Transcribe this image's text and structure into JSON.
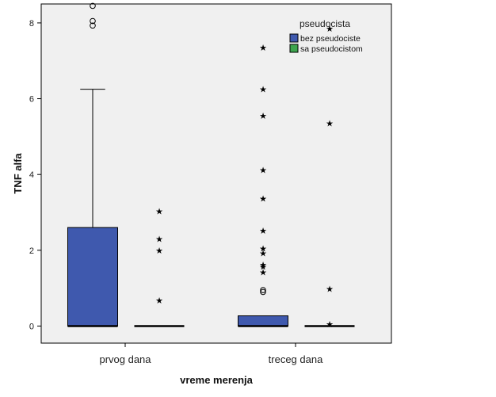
{
  "chart_data": {
    "type": "boxplot",
    "xlabel": "vreme merenja",
    "ylabel": "TNF alfa",
    "ylim": [
      -0.45,
      8.5
    ],
    "yticks": [
      0,
      2,
      4,
      6,
      8
    ],
    "categories": [
      "prvog dana",
      "treceg dana"
    ],
    "legend": {
      "title": "pseudocista",
      "placement": "top-right"
    },
    "grid": false,
    "series": [
      {
        "name": "bez pseudociste",
        "color": "#3F59AE",
        "boxes": [
          {
            "category": "prvog dana",
            "whisker_low": 0,
            "q1": 0,
            "median": 0,
            "q3": 2.6,
            "whisker_high": 6.25,
            "outliers_circle": [
              8.45,
              8.05,
              7.93
            ],
            "outliers_star": []
          },
          {
            "category": "treceg dana",
            "whisker_low": 0,
            "q1": 0,
            "median": 0,
            "q3": 0.27,
            "whisker_high": 0.27,
            "outliers_circle": [
              0.95,
              0.9
            ],
            "outliers_star": [
              7.35,
              6.25,
              5.55,
              4.12,
              3.37,
              2.52,
              2.05,
              1.92,
              1.62,
              1.57,
              1.42
            ]
          }
        ]
      },
      {
        "name": "sa pseudocistom",
        "color": "#3DA44E",
        "boxes": [
          {
            "category": "prvog dana",
            "whisker_low": 0,
            "q1": 0,
            "median": 0,
            "q3": 0,
            "whisker_high": 0,
            "outliers_circle": [],
            "outliers_star": [
              3.03,
              2.3,
              2.0,
              0.68
            ]
          },
          {
            "category": "treceg dana",
            "whisker_low": 0,
            "q1": 0,
            "median": 0,
            "q3": 0,
            "whisker_high": 0,
            "outliers_circle": [],
            "outliers_star": [
              7.85,
              5.35,
              0.98,
              0.05
            ]
          }
        ]
      }
    ]
  }
}
